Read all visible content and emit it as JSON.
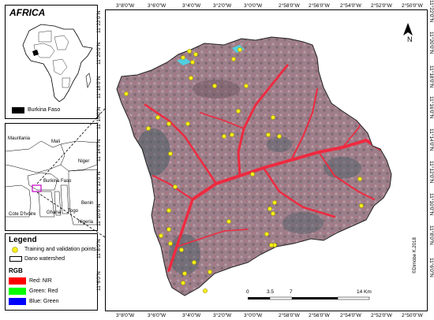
{
  "inset_africa": {
    "title": "AFRICA",
    "legend_label": "Burkina Faso"
  },
  "inset_region": {
    "countries": [
      "Mauritania",
      "Mali",
      "Niger",
      "Burkina Faso",
      "Cote D'Ivoire",
      "Ghana",
      "Togo",
      "Benin",
      "Nigeria"
    ]
  },
  "legend": {
    "title": "Legend",
    "points_label": "Training and validation points",
    "watershed_label": "Dano watershed",
    "rgb_title": "RGB",
    "bands": [
      {
        "label": "Red:   NIR",
        "color": "#ff0000"
      },
      {
        "label": "Green: Red",
        "color": "#00ff00"
      },
      {
        "label": "Blue:  Green",
        "color": "#0000ff"
      }
    ]
  },
  "map": {
    "top_ticks": [
      "3°8'0\"W",
      "3°6'0\"W",
      "3°4'0\"W",
      "3°2'0\"W",
      "3°0'0\"W",
      "2°58'0\"W",
      "2°56'0\"W",
      "2°54'0\"W",
      "2°52'0\"W",
      "2°50'0\"W"
    ],
    "bottom_ticks": [
      "3°8'0\"W",
      "3°6'0\"W",
      "3°4'0\"W",
      "3°2'0\"W",
      "3°0'0\"W",
      "2°58'0\"W",
      "2°56'0\"W",
      "2°54'0\"W",
      "2°52'0\"W",
      "2°50'0\"W"
    ],
    "lat_ticks": [
      "11°22'0\"N",
      "11°20'0\"N",
      "11°18'0\"N",
      "11°16'0\"N",
      "11°14'0\"N",
      "11°12'0\"N",
      "11°10'0\"N",
      "11°8'0\"N",
      "11°6'0\"N"
    ],
    "scale_labels": [
      "0",
      "3.5",
      "7",
      "14 Km"
    ],
    "north_label": "N",
    "copyright": "©Dimobe K.2018",
    "colors": {
      "image_base": "#9a7d88",
      "vegetation": "#e8283c",
      "water": "#4fd0e0",
      "points": "#f5ee1a"
    }
  }
}
